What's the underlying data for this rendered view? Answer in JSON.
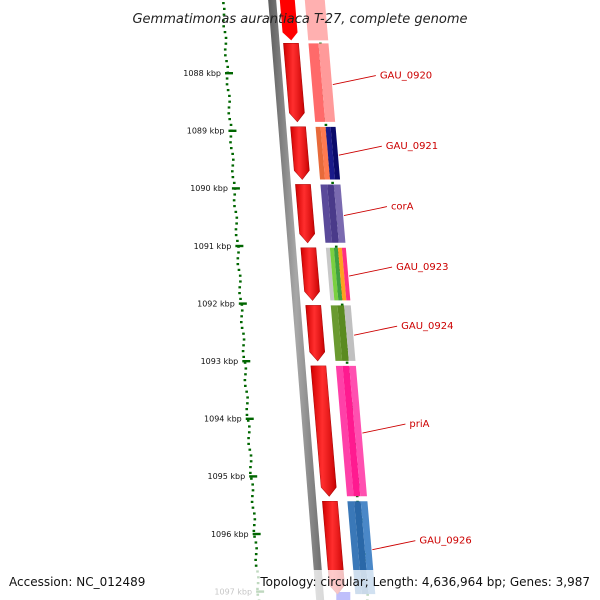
{
  "title": "Gemmatimonas aurantiaca T-27, complete genome",
  "accession_text": "Accession: NC_012489",
  "summary_text": "Topology: circular; Length: 4,636,964 bp; Genes: 3,987",
  "ruler": {
    "unit": "kbp",
    "ticks": [
      {
        "value": 1088,
        "label": "1088 kbp"
      },
      {
        "value": 1089,
        "label": "1089 kbp"
      },
      {
        "value": 1090,
        "label": "1090 kbp"
      },
      {
        "value": 1091,
        "label": "1091 kbp"
      },
      {
        "value": 1092,
        "label": "1092 kbp"
      },
      {
        "value": 1093,
        "label": "1093 kbp"
      },
      {
        "value": 1094,
        "label": "1094 kbp"
      },
      {
        "value": 1095,
        "label": "1095 kbp"
      },
      {
        "value": 1096,
        "label": "1096 kbp"
      },
      {
        "value": 1097,
        "label": "1097 kbp"
      }
    ]
  },
  "genes": [
    {
      "label": "GAU_0920",
      "start_kbp": 1087.45,
      "end_kbp": 1088.9
    },
    {
      "label": "GAU_0921",
      "start_kbp": 1088.9,
      "end_kbp": 1089.9
    },
    {
      "label": "corA",
      "start_kbp": 1089.9,
      "end_kbp": 1091.0
    },
    {
      "label": "GAU_0923",
      "start_kbp": 1091.0,
      "end_kbp": 1092.0
    },
    {
      "label": "GAU_0924",
      "start_kbp": 1092.0,
      "end_kbp": 1093.05
    },
    {
      "label": "priA",
      "start_kbp": 1093.05,
      "end_kbp": 1095.4
    },
    {
      "label": "GAU_0926",
      "start_kbp": 1095.4,
      "end_kbp": 1097.1
    }
  ],
  "colors": {
    "gene_forward": "#ff0000",
    "backbone": "#7a7a7a",
    "tick": "#006600",
    "label": "#cc0000"
  }
}
